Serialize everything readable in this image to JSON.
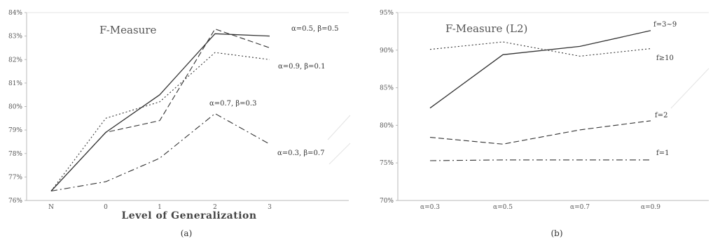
{
  "chart_data": [
    {
      "type": "line",
      "title": "F-Measure",
      "xlabel": "Level of Generalization",
      "ylabel": "",
      "caption": "(a)",
      "categories": [
        "N",
        "0",
        "1",
        "2",
        "3"
      ],
      "ylim": [
        0.76,
        0.84
      ],
      "yticks": [
        "76%",
        "77%",
        "78%",
        "79%",
        "80%",
        "81%",
        "82%",
        "83%",
        "84%"
      ],
      "series": [
        {
          "name": "α=0.5, β=0.5",
          "style": "solid",
          "values": [
            0.764,
            0.789,
            0.805,
            0.831,
            0.83
          ]
        },
        {
          "name": "α=0.9, β=0.1",
          "style": "dotted",
          "values": [
            0.764,
            0.795,
            0.802,
            0.823,
            0.82
          ]
        },
        {
          "name": "α=0.7, β=0.3",
          "style": "dashed",
          "values": [
            0.764,
            0.789,
            0.794,
            0.833,
            0.825
          ]
        },
        {
          "name": "α=0.3, β=0.7",
          "style": "dashdot",
          "values": [
            0.764,
            0.768,
            0.778,
            0.797,
            0.784
          ]
        }
      ]
    },
    {
      "type": "line",
      "title": "F-Measure (L2)",
      "xlabel": "",
      "ylabel": "",
      "caption": "(b)",
      "categories": [
        "α=0.3",
        "α=0.5",
        "α=0.7",
        "α=0.9"
      ],
      "ylim": [
        0.7,
        0.95
      ],
      "yticks": [
        "70%",
        "75%",
        "80%",
        "85%",
        "90%",
        "95%"
      ],
      "series": [
        {
          "name": "f=3~9",
          "style": "solid",
          "values": [
            0.823,
            0.894,
            0.905,
            0.926
          ]
        },
        {
          "name": "f≥10",
          "style": "dotted",
          "values": [
            0.901,
            0.911,
            0.892,
            0.902
          ]
        },
        {
          "name": "f=2",
          "style": "dashed",
          "values": [
            0.784,
            0.775,
            0.794,
            0.806
          ]
        },
        {
          "name": "f=1",
          "style": "dashdot",
          "values": [
            0.753,
            0.754,
            0.754,
            0.754
          ]
        }
      ]
    }
  ]
}
